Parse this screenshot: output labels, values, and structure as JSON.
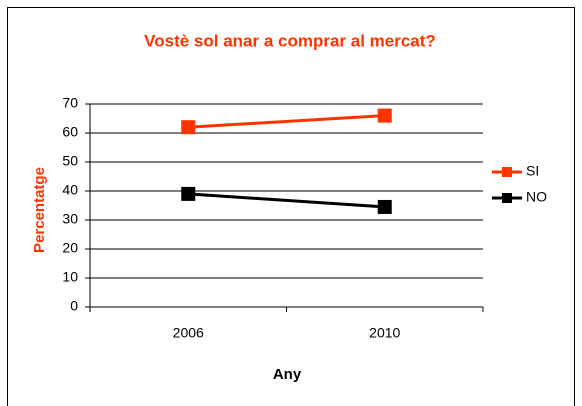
{
  "chart_data": {
    "type": "line",
    "title": "Vostè sol anar a comprar al mercat?",
    "x_label": "Any",
    "y_label": "Percentatge",
    "categories": [
      "2006",
      "2010"
    ],
    "series": [
      {
        "name": "SI",
        "color": "#ff3300",
        "values": [
          62,
          66
        ]
      },
      {
        "name": "NO",
        "color": "#000000",
        "values": [
          39,
          34.5
        ]
      }
    ],
    "ylim": [
      0,
      70
    ],
    "yticks": [
      0,
      10,
      20,
      30,
      40,
      50,
      60,
      70
    ],
    "grid": true,
    "legend": "right"
  }
}
